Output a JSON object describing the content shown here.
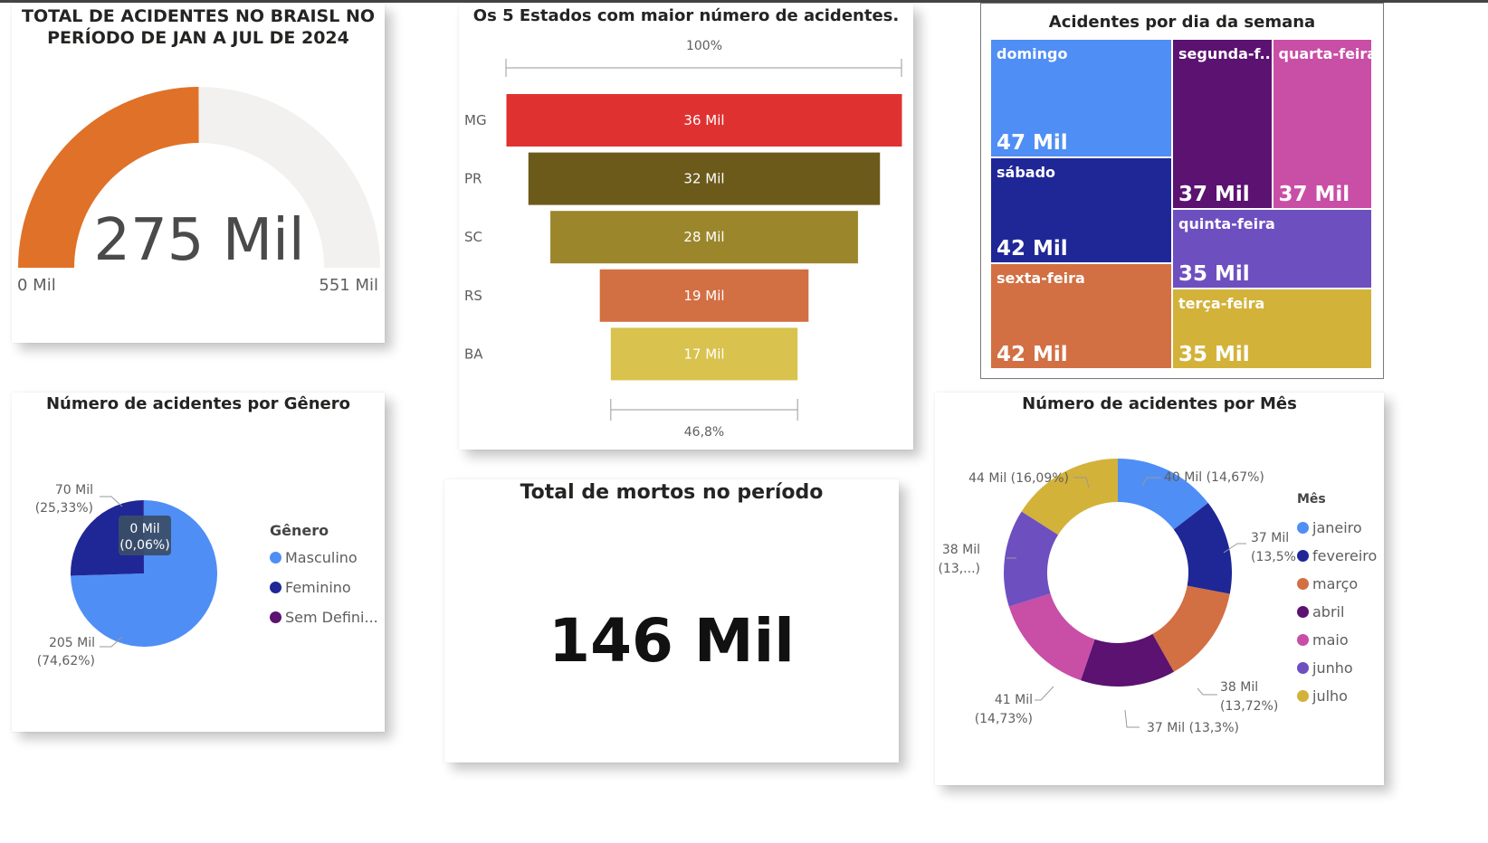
{
  "gauge": {
    "title_line1": "TOTAL DE ACIDENTES NO BRAISL NO",
    "title_line2": "PERÍODO DE JAN A JUL DE 2024",
    "value_label": "275 Mil",
    "min_label": "0 Mil",
    "max_label": "551 Mil",
    "value": 275,
    "min": 0,
    "max": 551,
    "fill_color": "#e07128",
    "track_color": "#f2f1f0"
  },
  "funnel": {
    "title": "Os 5 Estados com maior número de acidentes.",
    "top_pct": "100%",
    "bottom_pct": "46,8%",
    "chart_data": {
      "type": "bar",
      "categories": [
        "MG",
        "PR",
        "SC",
        "RS",
        "BA"
      ],
      "values": [
        36,
        32,
        28,
        19,
        17
      ],
      "labels": [
        "36 Mil",
        "32 Mil",
        "28 Mil",
        "19 Mil",
        "17 Mil"
      ],
      "colors": [
        "#e03131",
        "#6b5a1a",
        "#9b862c",
        "#d26f43",
        "#d9c24d"
      ]
    }
  },
  "treemap": {
    "title": "Acidentes por dia da semana",
    "chart_data": {
      "type": "treemap",
      "items": [
        {
          "label": "domingo",
          "value_label": "47 Mil",
          "value": 47,
          "color": "#4f8ef5"
        },
        {
          "label": "sábado",
          "value_label": "42 Mil",
          "value": 42,
          "color": "#1f2797"
        },
        {
          "label": "sexta-feira",
          "value_label": "42 Mil",
          "value": 42,
          "color": "#d26f43"
        },
        {
          "label": "segunda-f...",
          "value_label": "37 Mil",
          "value": 37,
          "color": "#5b1270"
        },
        {
          "label": "quarta-feira",
          "value_label": "37 Mil",
          "value": 37,
          "color": "#c84ea6"
        },
        {
          "label": "quinta-feira",
          "value_label": "35 Mil",
          "value": 35,
          "color": "#6e4fc0"
        },
        {
          "label": "terça-feira",
          "value_label": "35 Mil",
          "value": 35,
          "color": "#d3b23a"
        }
      ]
    }
  },
  "gender": {
    "title": "Número de acidentes por Gênero",
    "legend_title": "Gênero",
    "tooltip_line1": "0 Mil",
    "tooltip_line2": "(0,06%)",
    "chart_data": {
      "type": "pie",
      "categories": [
        "Masculino",
        "Feminino",
        "Sem Defini..."
      ],
      "values": [
        205,
        70,
        0.16
      ],
      "percent": [
        74.62,
        25.33,
        0.06
      ],
      "colors": [
        "#4f8ef5",
        "#1f2797",
        "#5b1270"
      ],
      "data_labels": [
        {
          "line1": "205 Mil",
          "line2": "(74,62%)"
        },
        {
          "line1": "70 Mil",
          "line2": "(25,33%)"
        }
      ]
    }
  },
  "deaths": {
    "title": "Total de mortos no período",
    "value_label": "146 Mil"
  },
  "month": {
    "title": "Número de acidentes por Mês",
    "legend_title": "Mês",
    "chart_data": {
      "type": "donut",
      "categories": [
        "janeiro",
        "fevereiro",
        "março",
        "abril",
        "maio",
        "junho",
        "julho"
      ],
      "values": [
        40,
        37,
        38,
        37,
        41,
        38,
        44
      ],
      "percent": [
        14.67,
        13.5,
        13.72,
        13.3,
        14.73,
        13.9,
        16.09
      ],
      "colors": [
        "#4f8ef5",
        "#1f2797",
        "#d26f43",
        "#5b1270",
        "#c84ea6",
        "#6e4fc0",
        "#d3b23a"
      ],
      "data_labels": [
        {
          "line1": "40 Mil (14,67%)",
          "line2": ""
        },
        {
          "line1": "37 Mil",
          "line2": "(13,5%)"
        },
        {
          "line1": "38 Mil",
          "line2": "(13,72%)"
        },
        {
          "line1": "37 Mil (13,3%)",
          "line2": ""
        },
        {
          "line1": "41 Mil",
          "line2": "(14,73%)"
        },
        {
          "line1": "38 Mil",
          "line2": "(13,...)"
        },
        {
          "line1": "44 Mil (16,09%)",
          "line2": ""
        }
      ]
    }
  }
}
